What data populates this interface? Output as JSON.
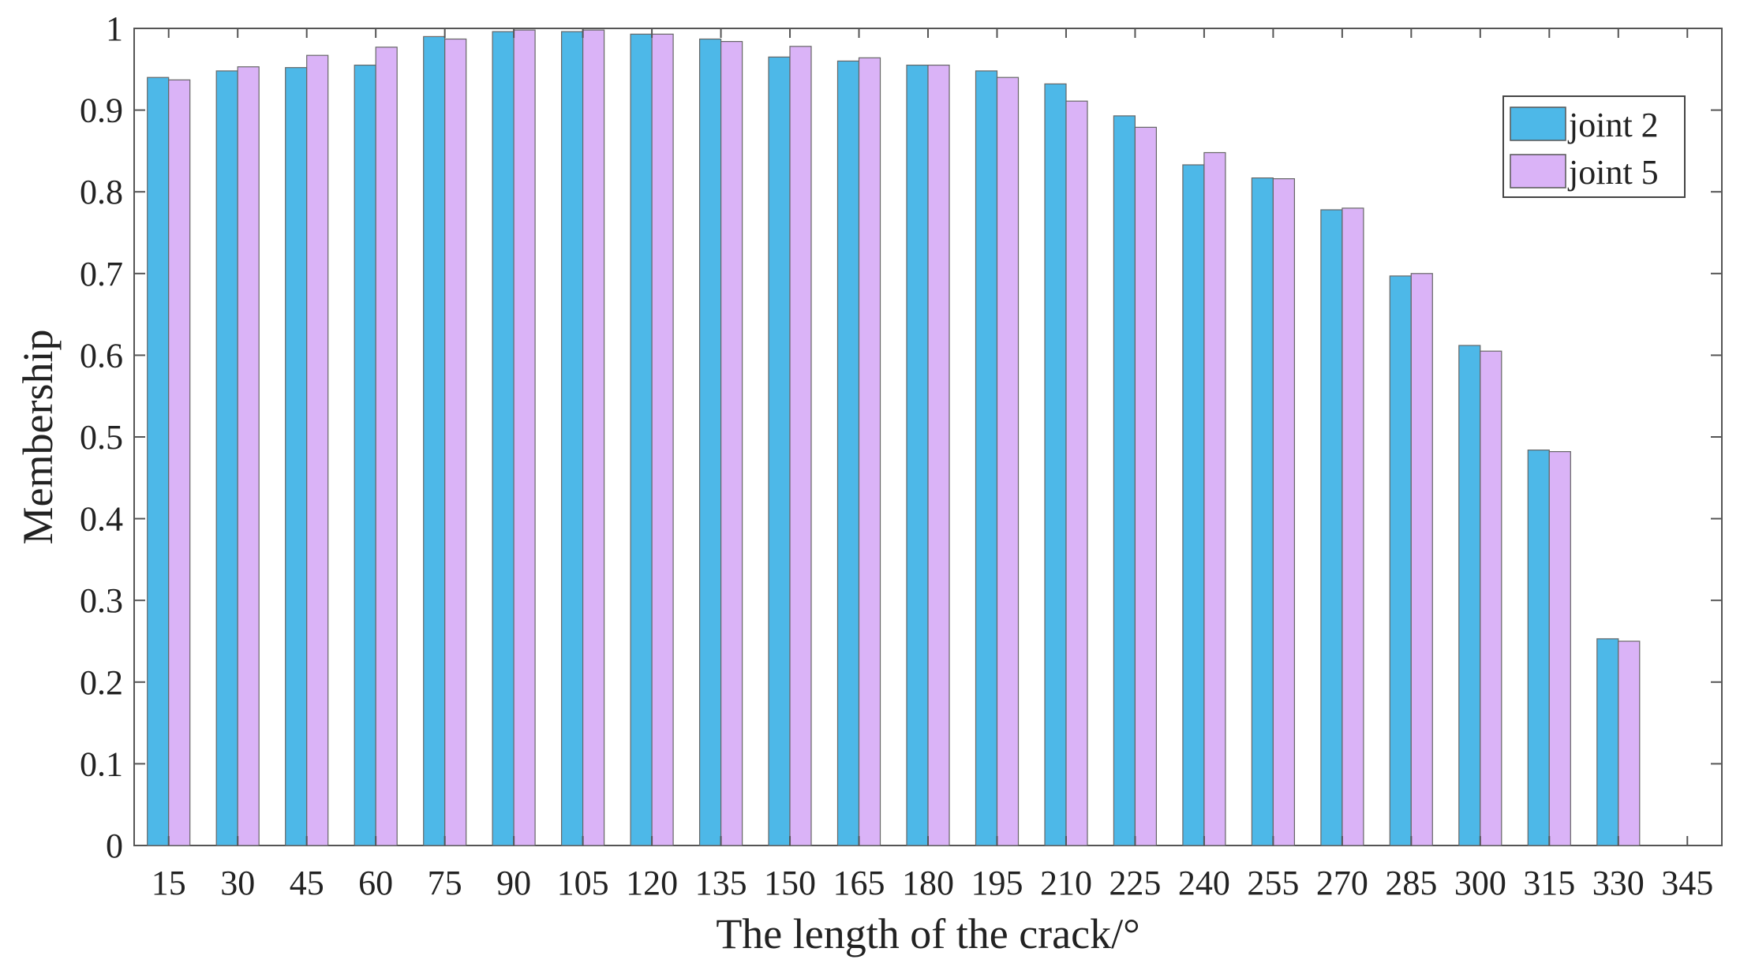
{
  "chart_data": {
    "type": "bar",
    "xlabel": "The length of the crack/°",
    "ylabel": "Membership",
    "ylim": [
      0,
      1
    ],
    "yticks": [
      "0",
      "0.1",
      "0.2",
      "0.3",
      "0.4",
      "0.5",
      "0.6",
      "0.7",
      "0.8",
      "0.9",
      "1"
    ],
    "categories": [
      "15",
      "30",
      "45",
      "60",
      "75",
      "90",
      "105",
      "120",
      "135",
      "150",
      "165",
      "180",
      "195",
      "210",
      "225",
      "240",
      "255",
      "270",
      "285",
      "300",
      "315",
      "330"
    ],
    "extra_x_tick": "345",
    "grid": false,
    "legend_position": "top-right",
    "series": [
      {
        "name": "joint 2",
        "color": "#4db8e8",
        "values": [
          0.94,
          0.948,
          0.952,
          0.955,
          0.99,
          0.996,
          0.996,
          0.993,
          0.987,
          0.965,
          0.96,
          0.955,
          0.948,
          0.932,
          0.893,
          0.833,
          0.817,
          0.778,
          0.697,
          0.612,
          0.484,
          0.253
        ]
      },
      {
        "name": "joint 5",
        "color": "#dab3f7",
        "values": [
          0.937,
          0.953,
          0.967,
          0.977,
          0.987,
          0.998,
          0.998,
          0.993,
          0.984,
          0.978,
          0.964,
          0.955,
          0.94,
          0.911,
          0.879,
          0.848,
          0.816,
          0.78,
          0.7,
          0.605,
          0.482,
          0.25
        ]
      }
    ]
  }
}
